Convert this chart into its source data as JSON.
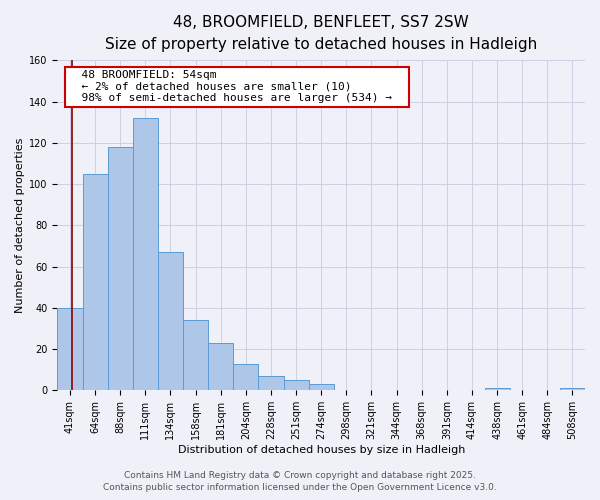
{
  "title": "48, BROOMFIELD, BENFLEET, SS7 2SW",
  "subtitle": "Size of property relative to detached houses in Hadleigh",
  "xlabel": "Distribution of detached houses by size in Hadleigh",
  "ylabel": "Number of detached properties",
  "bar_labels": [
    "41sqm",
    "64sqm",
    "88sqm",
    "111sqm",
    "134sqm",
    "158sqm",
    "181sqm",
    "204sqm",
    "228sqm",
    "251sqm",
    "274sqm",
    "298sqm",
    "321sqm",
    "344sqm",
    "368sqm",
    "391sqm",
    "414sqm",
    "438sqm",
    "461sqm",
    "484sqm",
    "508sqm"
  ],
  "bar_values": [
    40,
    105,
    118,
    132,
    67,
    34,
    23,
    13,
    7,
    5,
    3,
    0,
    0,
    0,
    0,
    0,
    0,
    1,
    0,
    0,
    1
  ],
  "bar_color": "#aec6e8",
  "bar_edge_color": "#5b9bd5",
  "bar_width": 1.0,
  "vline_x": 0.57,
  "vline_color": "#8b0000",
  "annotation_title": "48 BROOMFIELD: 54sqm",
  "annotation_line1": "← 2% of detached houses are smaller (10)",
  "annotation_line2": "98% of semi-detached houses are larger (534) →",
  "annotation_box_color": "#ffffff",
  "annotation_box_edge_color": "#cc0000",
  "ylim": [
    0,
    160
  ],
  "yticks": [
    0,
    20,
    40,
    60,
    80,
    100,
    120,
    140,
    160
  ],
  "footer1": "Contains HM Land Registry data © Crown copyright and database right 2025.",
  "footer2": "Contains public sector information licensed under the Open Government Licence v3.0.",
  "bg_color": "#f0f0f8",
  "grid_color": "#c8cce0",
  "title_fontsize": 11,
  "subtitle_fontsize": 9,
  "axis_label_fontsize": 8,
  "tick_fontsize": 7,
  "annotation_fontsize": 8,
  "footer_fontsize": 6.5
}
